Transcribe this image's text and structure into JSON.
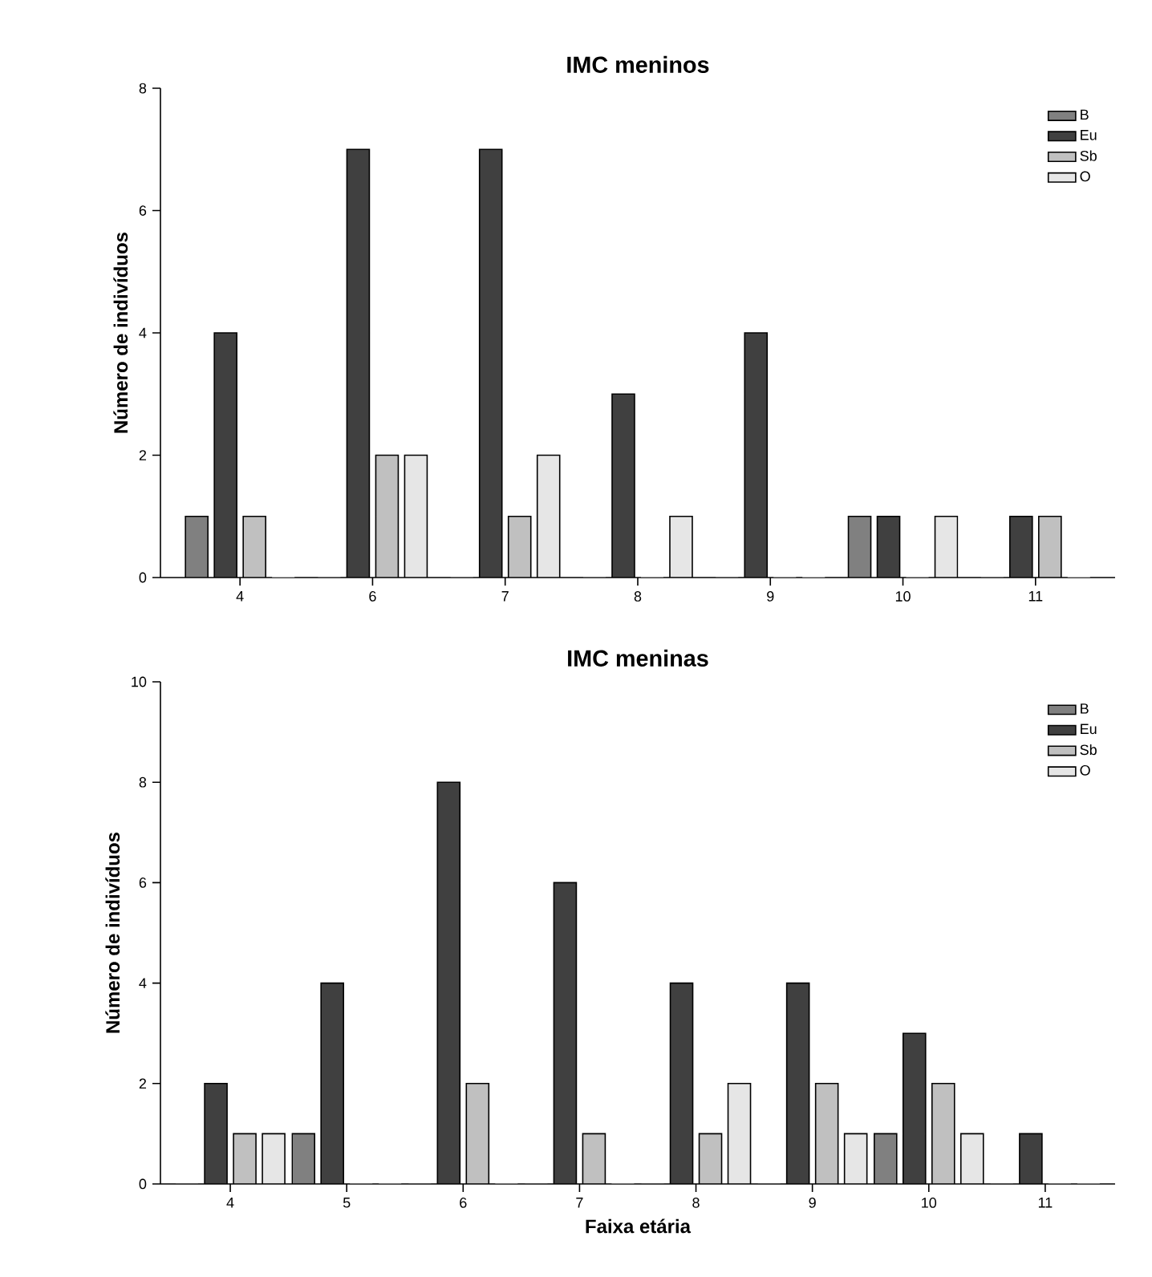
{
  "chart_data": [
    {
      "type": "bar",
      "title": "IMC meninos",
      "ylabel": "Número de indivíduos",
      "categories": [
        "4",
        "6",
        "7",
        "8",
        "9",
        "10",
        "11"
      ],
      "ylim": [
        0,
        8
      ],
      "yticks": [
        0,
        2,
        4,
        6,
        8
      ],
      "legend": "top right",
      "grid": false,
      "series": [
        {
          "name": "B",
          "color": "#808080",
          "values": [
            1,
            0,
            0,
            0,
            0,
            1,
            0
          ]
        },
        {
          "name": "Eu",
          "color": "#404040",
          "values": [
            4,
            7,
            7,
            3,
            4,
            1,
            1
          ]
        },
        {
          "name": "Sb",
          "color": "#c0c0c0",
          "values": [
            1,
            2,
            1,
            0,
            0,
            0,
            1
          ]
        },
        {
          "name": "O",
          "color": "#e6e6e6",
          "values": [
            0,
            2,
            2,
            1,
            0,
            1,
            0
          ]
        }
      ]
    },
    {
      "type": "bar",
      "title": "IMC meninas",
      "xlabel": "Faixa etária",
      "ylabel": "Número de indivíduos",
      "categories": [
        "4",
        "5",
        "6",
        "7",
        "8",
        "9",
        "10",
        "11"
      ],
      "ylim": [
        0,
        10
      ],
      "yticks": [
        0,
        2,
        4,
        6,
        8,
        10
      ],
      "legend": "top right",
      "grid": false,
      "series": [
        {
          "name": "B",
          "color": "#808080",
          "values": [
            0,
            1,
            0,
            0,
            0,
            0,
            1,
            0
          ]
        },
        {
          "name": "Eu",
          "color": "#404040",
          "values": [
            2,
            4,
            8,
            6,
            4,
            4,
            3,
            1
          ]
        },
        {
          "name": "Sb",
          "color": "#c0c0c0",
          "values": [
            1,
            0,
            2,
            1,
            1,
            2,
            2,
            0
          ]
        },
        {
          "name": "O",
          "color": "#e6e6e6",
          "values": [
            1,
            0,
            0,
            0,
            2,
            1,
            1,
            0
          ]
        }
      ]
    }
  ]
}
